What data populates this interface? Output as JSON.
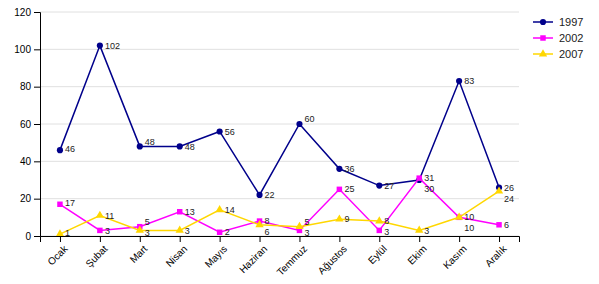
{
  "chart_data": {
    "type": "line",
    "categories": [
      "Ocak",
      "Şubat",
      "Mart",
      "Nisan",
      "Mayıs",
      "Haziran",
      "Temmuz",
      "Ağustos",
      "Eylül",
      "Ekim",
      "Kasım",
      "Aralık"
    ],
    "series": [
      {
        "name": "1997",
        "color": "#00008B",
        "marker": "circle",
        "values": [
          46,
          102,
          48,
          48,
          56,
          22,
          60,
          36,
          27,
          30,
          83,
          26
        ]
      },
      {
        "name": "2002",
        "color": "#FF00FF",
        "marker": "square",
        "values": [
          17,
          3,
          5,
          13,
          2,
          8,
          3,
          25,
          3,
          31,
          10,
          6
        ]
      },
      {
        "name": "2007",
        "color": "#FFD700",
        "marker": "triangle",
        "values": [
          1,
          11,
          3,
          3,
          14,
          6,
          5,
          9,
          8,
          3,
          10,
          24
        ]
      }
    ],
    "ylim": [
      0,
      120
    ],
    "yticks": [
      0,
      20,
      40,
      60,
      80,
      100,
      120
    ],
    "grid": true,
    "legend": "upper right",
    "data_labels": true
  }
}
